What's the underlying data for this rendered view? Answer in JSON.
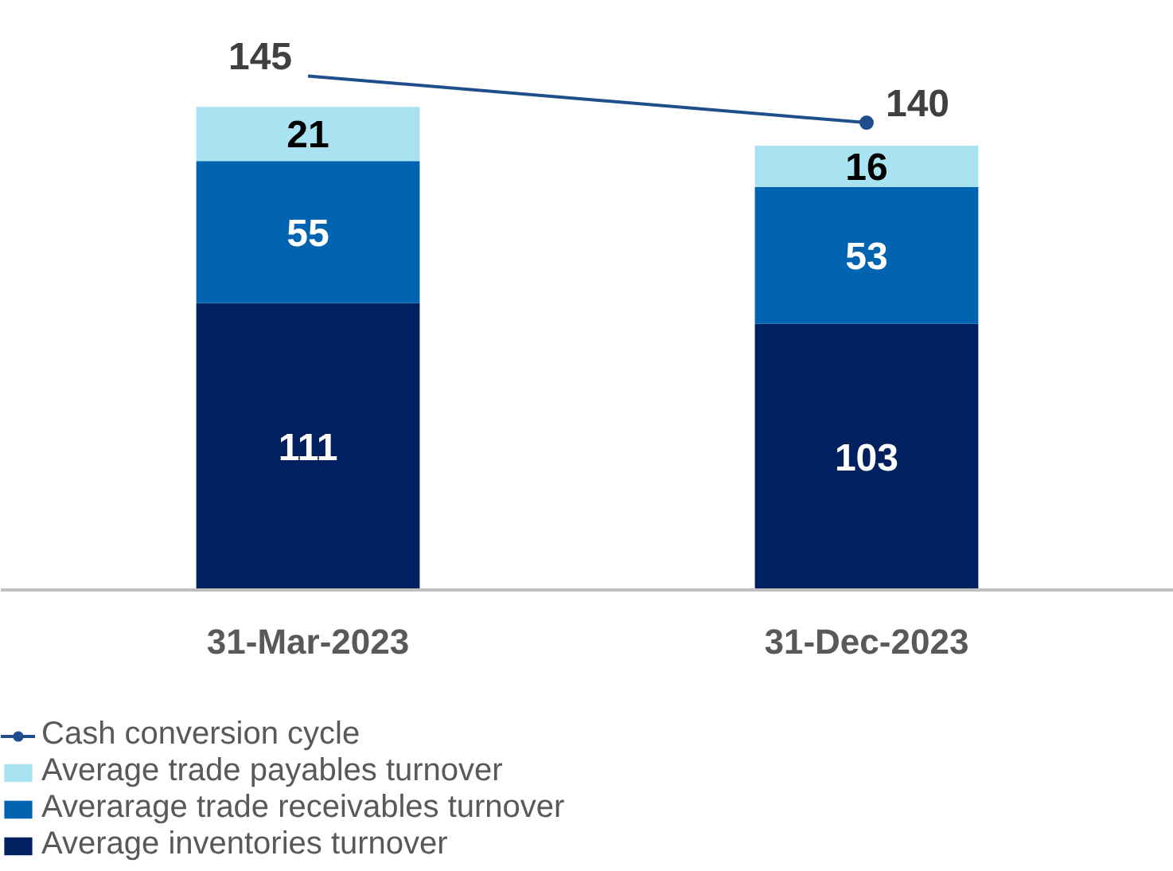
{
  "chart_data": {
    "type": "bar",
    "stacked": true,
    "categories": [
      "31-Mar-2023",
      "31-Dec-2023"
    ],
    "data_labels": true,
    "legend": "bottom",
    "grid": false,
    "series": [
      {
        "name": "Average inventories turnover",
        "color": "#002060",
        "values": [
          111,
          103
        ]
      },
      {
        "name": "Averarage trade receivables turnover",
        "color": "#0064b0",
        "values": [
          55,
          53
        ]
      },
      {
        "name": "Average trade payables turnover",
        "color": "#a9e2f0",
        "values": [
          21,
          16
        ]
      },
      {
        "name": "Cash conversion cycle",
        "type": "line",
        "axis": "y2",
        "color": "#1f4e8c",
        "marker": "circle",
        "values": [
          145,
          140
        ]
      }
    ]
  }
}
